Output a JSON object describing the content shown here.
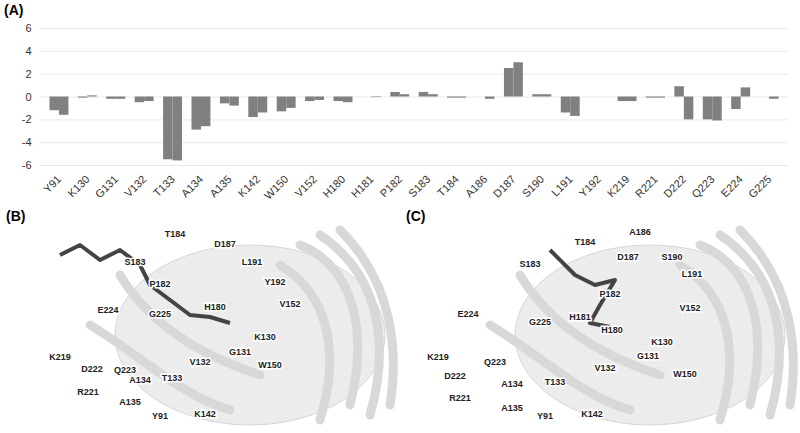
{
  "chart_data": {
    "type": "bar",
    "annotations": [
      "(A)"
    ],
    "categories": [
      "Y91",
      "K130",
      "G131",
      "V132",
      "T133",
      "A134",
      "A135",
      "K142",
      "W150",
      "V152",
      "H180",
      "H181",
      "P182",
      "S183",
      "T184",
      "A186",
      "D187",
      "S190",
      "L191",
      "Y192",
      "K219",
      "R221",
      "D222",
      "Q223",
      "E224",
      "G225"
    ],
    "series": [
      {
        "color": "#808080",
        "values": [
          -1.2,
          -0.1,
          -0.2,
          -0.5,
          -5.5,
          -2.9,
          -0.6,
          -1.8,
          -1.3,
          -0.4,
          -0.4,
          0,
          0.4,
          0.4,
          -0.1,
          0,
          2.5,
          0.2,
          -1.4,
          0,
          -0.4,
          -0.1,
          0.9,
          -2.0,
          -1.1,
          0
        ]
      },
      {
        "color": "#808080",
        "values": [
          -1.6,
          0.1,
          -0.2,
          -0.4,
          -5.6,
          -2.6,
          -0.8,
          -1.4,
          -1.0,
          -0.3,
          -0.5,
          -0.05,
          0.2,
          0.2,
          -0.1,
          -0.2,
          3.0,
          0.2,
          -1.7,
          0,
          -0.4,
          -0.1,
          -2.0,
          -2.1,
          0.8,
          -0.2
        ]
      }
    ],
    "ylim": [
      -6,
      6
    ],
    "yticks": [
      -6,
      -4,
      -2,
      0,
      2,
      4,
      6
    ],
    "grid": true
  },
  "structures": [
    {
      "label": "(B)",
      "residues": [
        "T184",
        "D187",
        "S183",
        "P182",
        "L191",
        "Y192",
        "V152",
        "H180",
        "E224",
        "G225",
        "K130",
        "K219",
        "D222",
        "Q223",
        "W150",
        "G131",
        "V132",
        "T133",
        "A134",
        "R221",
        "A135",
        "Y91",
        "K142"
      ]
    },
    {
      "label": "(C)",
      "residues": [
        "A186",
        "T184",
        "D187",
        "S190",
        "S183",
        "L191",
        "P182",
        "V152",
        "H181",
        "H180",
        "E224",
        "G225",
        "K130",
        "K219",
        "Q223",
        "D222",
        "G131",
        "W150",
        "V132",
        "T133",
        "A134",
        "R221",
        "A135",
        "Y91",
        "K142"
      ]
    }
  ]
}
